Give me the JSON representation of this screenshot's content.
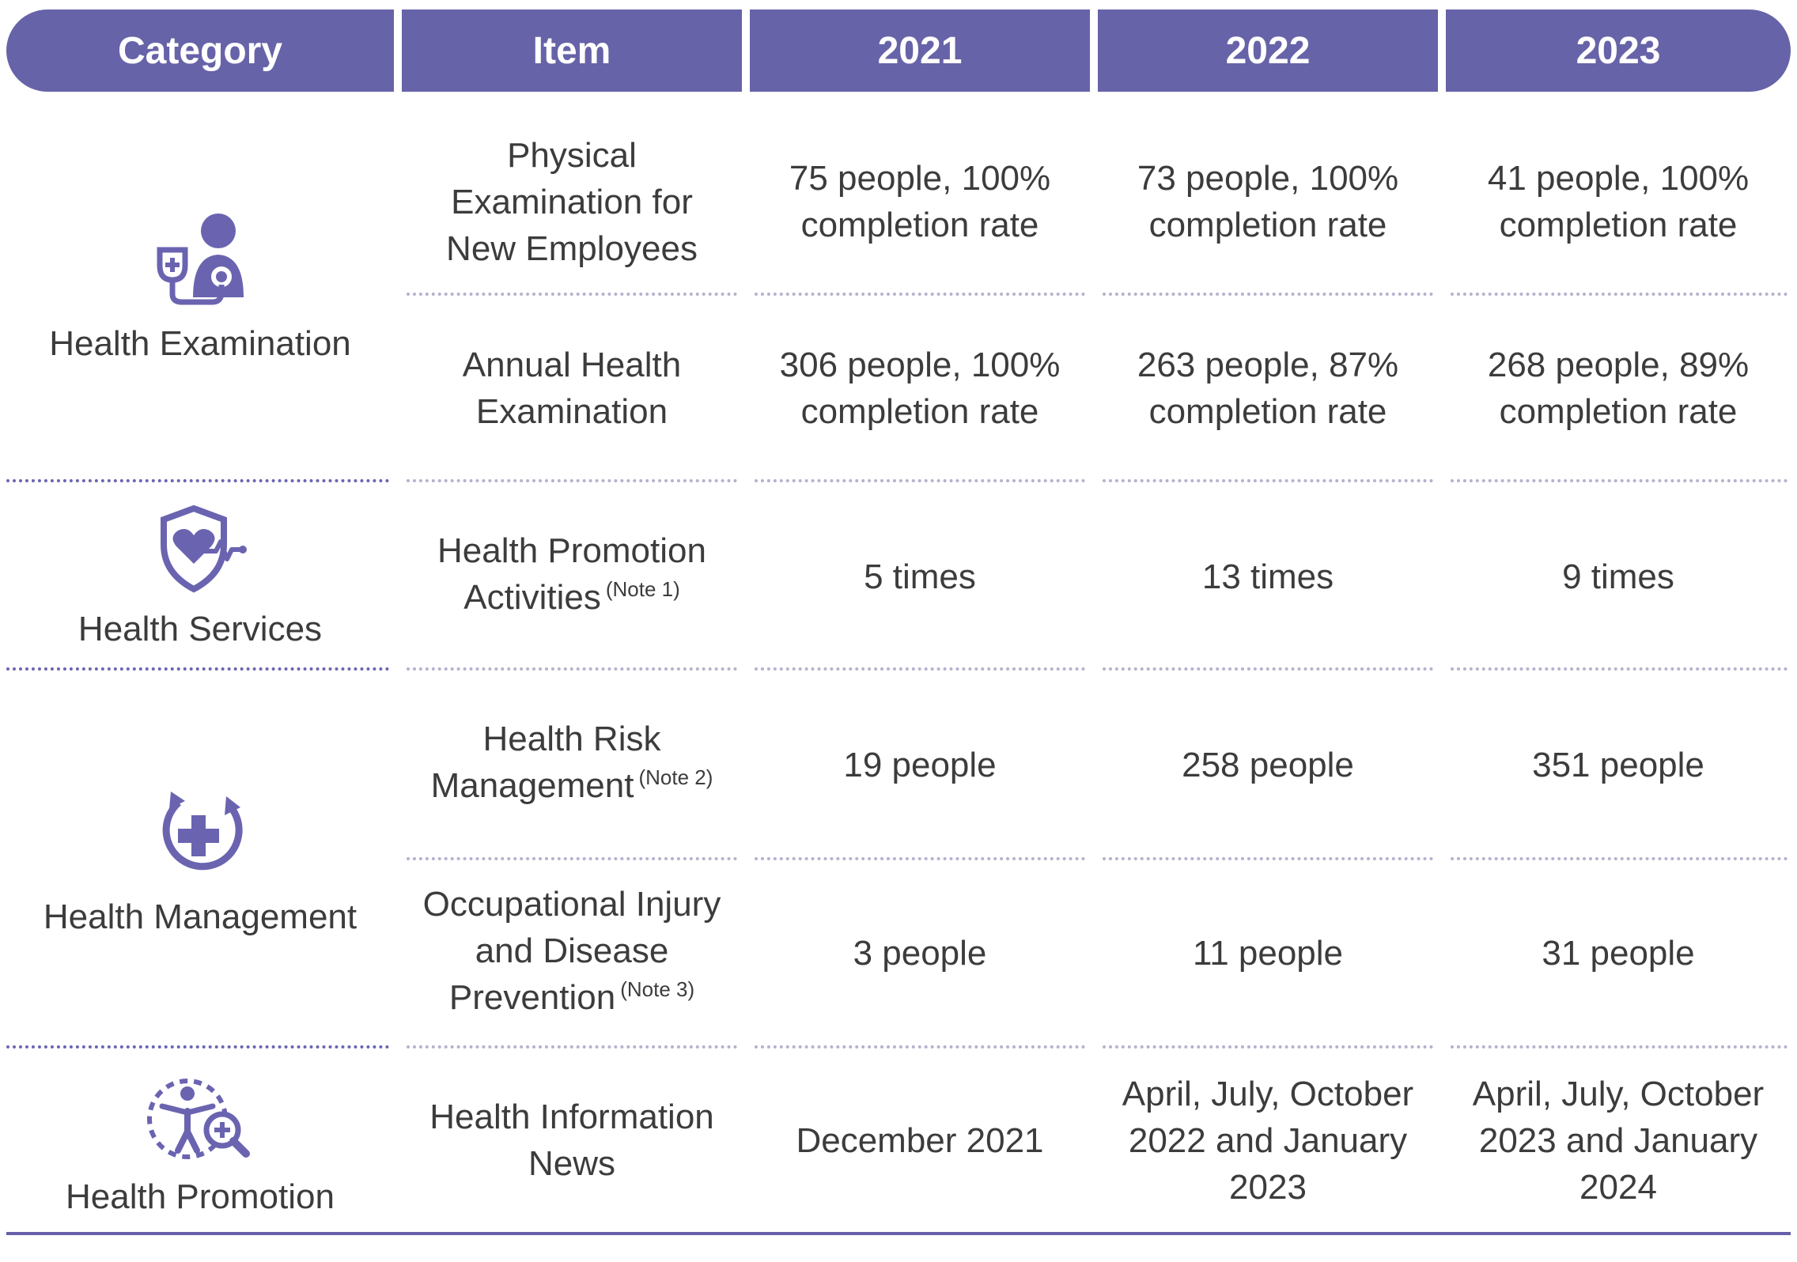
{
  "header": {
    "category": "Category",
    "item": "Item",
    "y2021": "2021",
    "y2022": "2022",
    "y2023": "2023"
  },
  "categories": [
    {
      "label": "Health Examination",
      "icon": "doctor-stethoscope-icon"
    },
    {
      "label": "Health Services",
      "icon": "heart-shield-icon"
    },
    {
      "label": "Health Management",
      "icon": "medical-cross-cycle-icon"
    },
    {
      "label": "Health Promotion",
      "icon": "person-magnifier-icon"
    }
  ],
  "rows": [
    {
      "item": "Physical Examination for New Employees",
      "note": "",
      "v2021": "75 people, 100% completion rate",
      "v2022": "73 people, 100% completion rate",
      "v2023": "41 people, 100% completion rate"
    },
    {
      "item": "Annual Health Examination",
      "note": "",
      "v2021": "306 people, 100% completion rate",
      "v2022": "263 people, 87% completion rate",
      "v2023": "268 people, 89% completion rate"
    },
    {
      "item": "Health Promotion Activities",
      "note": "(Note 1)",
      "v2021": "5 times",
      "v2022": "13 times",
      "v2023": "9 times"
    },
    {
      "item": "Health Risk Management",
      "note": "(Note 2)",
      "v2021": "19 people",
      "v2022": "258 people",
      "v2023": "351 people"
    },
    {
      "item": "Occupational Injury and Disease Prevention",
      "note": "(Note 3)",
      "v2021": "3 people",
      "v2022": "11 people",
      "v2023": "31 people"
    },
    {
      "item": "Health Information News",
      "note": "",
      "v2021": "December 2021",
      "v2022": "April, July, October 2022 and January 2023",
      "v2023": "April, July, October 2023 and January 2024"
    }
  ],
  "colors": {
    "accent": "#6763a8",
    "text": "#3c3c3c",
    "divider": "#b4b2cf"
  }
}
